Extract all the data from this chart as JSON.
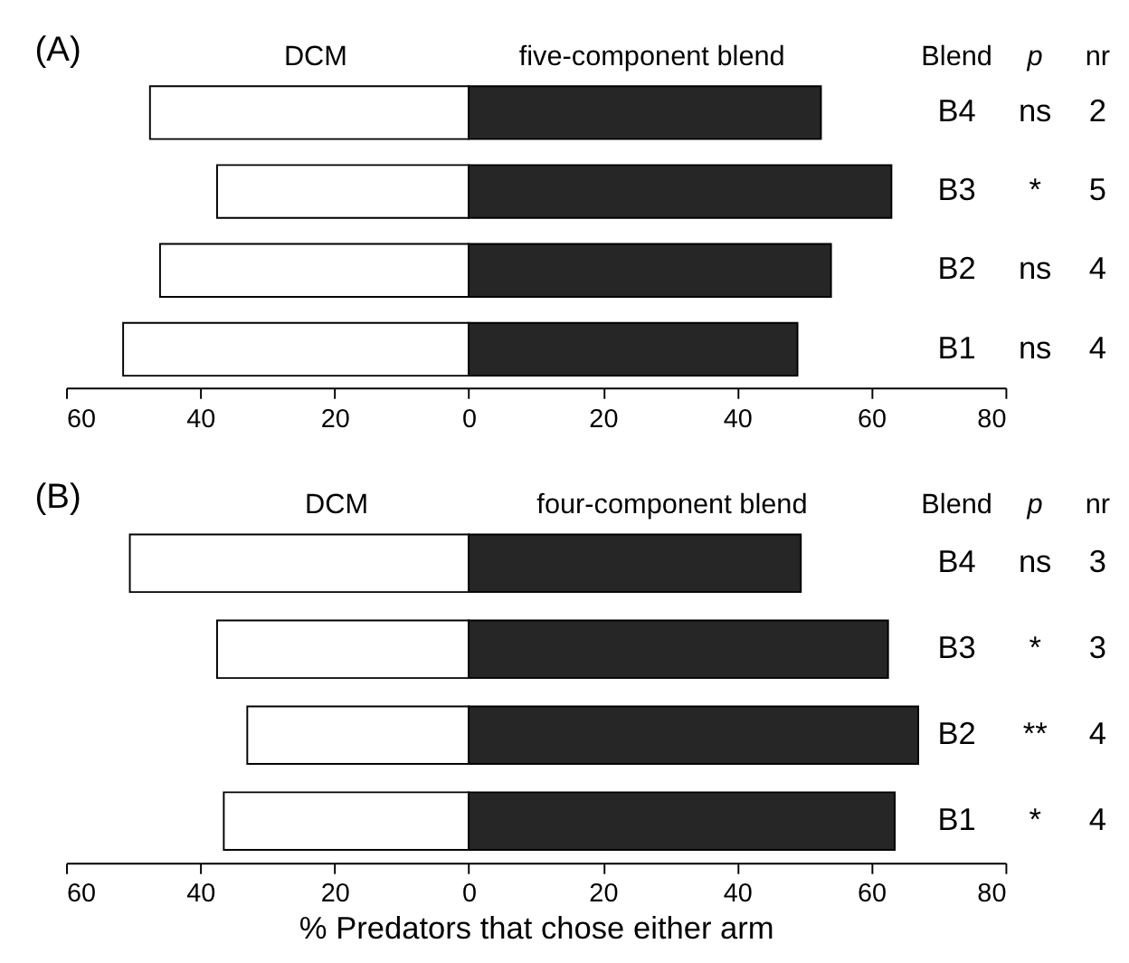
{
  "chart_data": [
    {
      "type": "bar",
      "orientation": "horizontal",
      "title": "(A)",
      "categories": [
        "B4",
        "B3",
        "B2",
        "B1"
      ],
      "series": [
        {
          "name": "DCM",
          "color": "#ffffff",
          "values": [
            -47.5,
            -37.5,
            -46,
            -51.5
          ]
        },
        {
          "name": "five-component blend",
          "color": "#262626",
          "values": [
            52.5,
            63,
            54,
            49
          ]
        }
      ],
      "xlim": [
        -60,
        80
      ],
      "xticks": [
        {
          "value": -60,
          "label": "60"
        },
        {
          "value": -40,
          "label": "40"
        },
        {
          "value": -20,
          "label": "20"
        },
        0,
        20,
        40,
        60,
        80
      ],
      "stacked": true,
      "annotations": [
        "Blend",
        "p",
        "nr",
        "ns",
        "2",
        "*",
        "5",
        "ns",
        "4",
        "ns",
        "4"
      ],
      "grid": false
    },
    {
      "type": "bar",
      "orientation": "horizontal",
      "title": "(B)",
      "xlabel": "% Predators that chose either arm",
      "categories": [
        "B4",
        "B3",
        "B2",
        "B1"
      ],
      "series": [
        {
          "name": "DCM",
          "color": "#ffffff",
          "values": [
            -50.5,
            -37.5,
            -33,
            -36.5
          ]
        },
        {
          "name": "four-component blend",
          "color": "#262626",
          "values": [
            49.5,
            62.5,
            67,
            63.5
          ]
        }
      ],
      "xlim": [
        -60,
        80
      ],
      "xticks": [
        {
          "value": -60,
          "label": "60"
        },
        {
          "value": -40,
          "label": "40"
        },
        {
          "value": -20,
          "label": "20"
        },
        0,
        20,
        40,
        60,
        80
      ],
      "stacked": true,
      "annotations": [
        "Blend",
        "p",
        "nr",
        "ns",
        "3",
        "*",
        "3",
        "**",
        "4",
        "*",
        "4"
      ],
      "grid": false
    }
  ]
}
